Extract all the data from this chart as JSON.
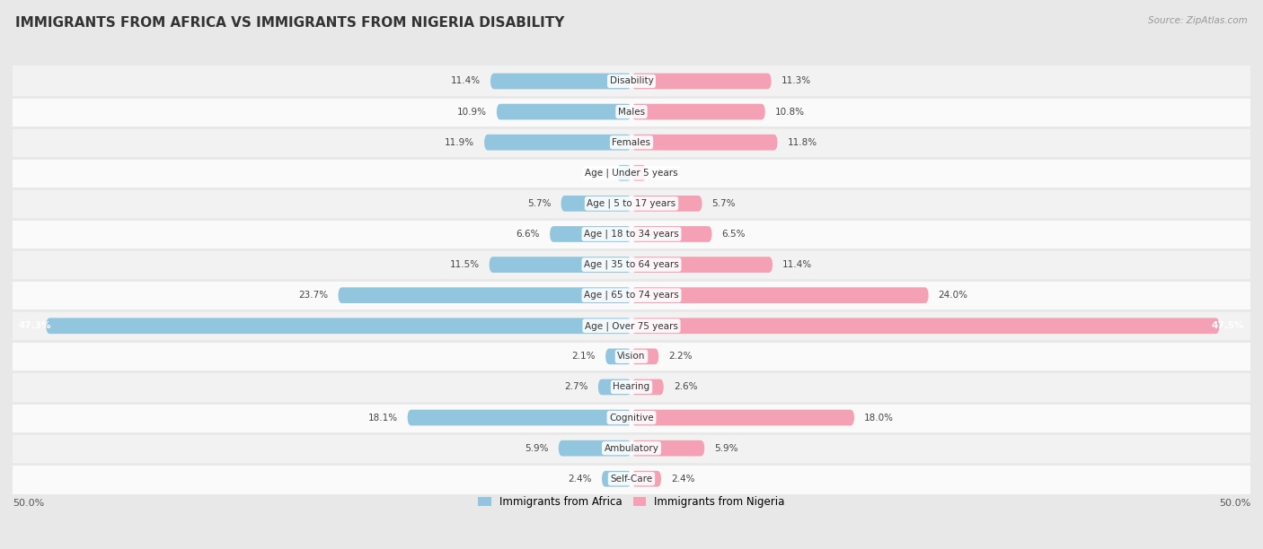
{
  "title": "IMMIGRANTS FROM AFRICA VS IMMIGRANTS FROM NIGERIA DISABILITY",
  "source": "Source: ZipAtlas.com",
  "categories": [
    "Disability",
    "Males",
    "Females",
    "Age | Under 5 years",
    "Age | 5 to 17 years",
    "Age | 18 to 34 years",
    "Age | 35 to 64 years",
    "Age | 65 to 74 years",
    "Age | Over 75 years",
    "Vision",
    "Hearing",
    "Cognitive",
    "Ambulatory",
    "Self-Care"
  ],
  "africa_values": [
    11.4,
    10.9,
    11.9,
    1.2,
    5.7,
    6.6,
    11.5,
    23.7,
    47.3,
    2.1,
    2.7,
    18.1,
    5.9,
    2.4
  ],
  "nigeria_values": [
    11.3,
    10.8,
    11.8,
    1.2,
    5.7,
    6.5,
    11.4,
    24.0,
    47.5,
    2.2,
    2.6,
    18.0,
    5.9,
    2.4
  ],
  "africa_color": "#92c5de",
  "nigeria_color": "#f4a0b5",
  "africa_label": "Immigrants from Africa",
  "nigeria_label": "Immigrants from Nigeria",
  "max_val": 50.0,
  "bg_color": "#e8e8e8",
  "row_even_color": "#f2f2f2",
  "row_odd_color": "#fafafa",
  "title_fontsize": 11,
  "label_fontsize": 7.5,
  "value_fontsize": 7.5,
  "legend_fontsize": 8.5,
  "axis_label_fontsize": 8
}
